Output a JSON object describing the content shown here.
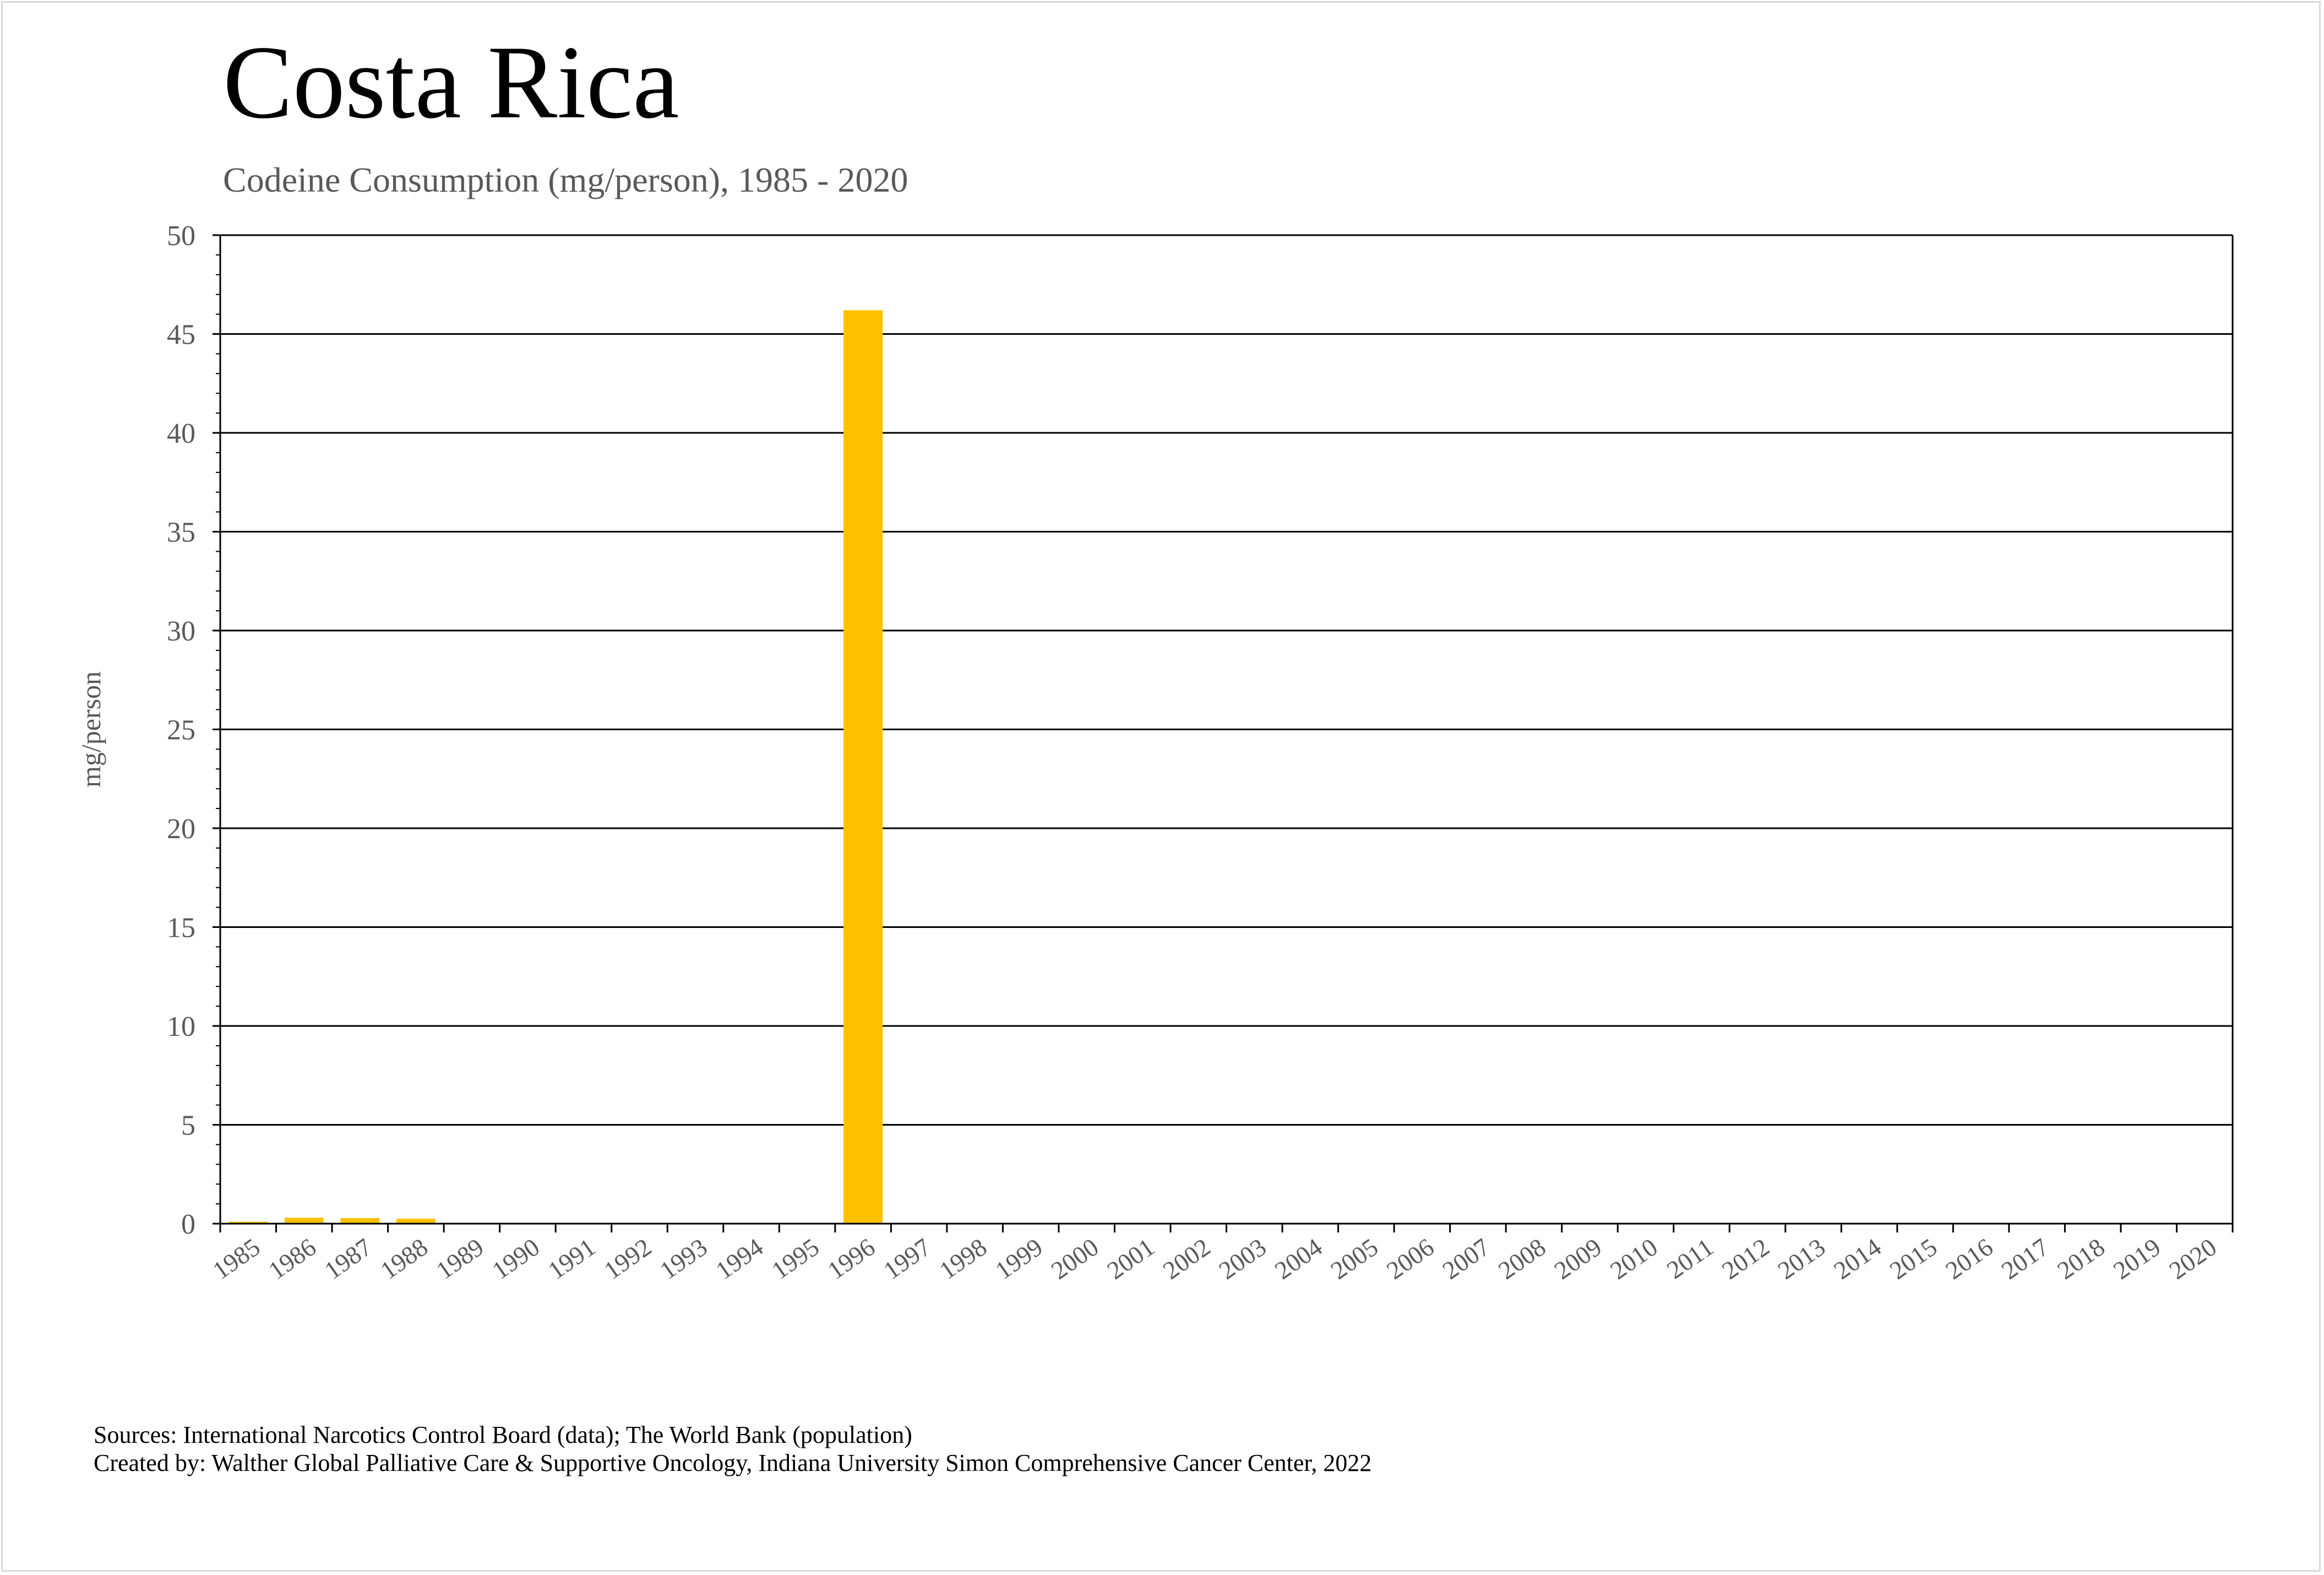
{
  "header": {
    "title": "Costa Rica",
    "subtitle": "Codeine Consumption (mg/person), 1985 - 2020"
  },
  "footer": {
    "sources": "Sources: International Narcotics Control Board (data); The World Bank (population)",
    "created_by": "Created by: Walther Global Palliative Care & Supportive Oncology, Indiana University Simon Comprehensive Cancer Center, 2022"
  },
  "chart_data": {
    "type": "bar",
    "title": "Costa Rica",
    "subtitle": "Codeine Consumption (mg/person), 1985 - 2020",
    "xlabel": "",
    "ylabel": "mg/person",
    "ylim": [
      0,
      50
    ],
    "yticks": [
      0,
      5,
      10,
      15,
      20,
      25,
      30,
      35,
      40,
      45,
      50
    ],
    "grid": true,
    "legend": "none",
    "bar_color": "#FFC000",
    "categories": [
      "1985",
      "1986",
      "1987",
      "1988",
      "1989",
      "1990",
      "1991",
      "1992",
      "1993",
      "1994",
      "1995",
      "1996",
      "1997",
      "1998",
      "1999",
      "2000",
      "2001",
      "2002",
      "2003",
      "2004",
      "2005",
      "2006",
      "2007",
      "2008",
      "2009",
      "2010",
      "2011",
      "2012",
      "2013",
      "2014",
      "2015",
      "2016",
      "2017",
      "2018",
      "2019",
      "2020"
    ],
    "values": [
      0.1,
      0.3,
      0.28,
      0.25,
      0,
      0,
      0,
      0,
      0,
      0,
      0,
      46.2,
      0,
      0,
      0,
      0,
      0,
      0,
      0,
      0,
      0,
      0,
      0,
      0,
      0,
      0,
      0,
      0,
      0,
      0,
      0,
      0,
      0,
      0,
      0,
      0
    ]
  }
}
